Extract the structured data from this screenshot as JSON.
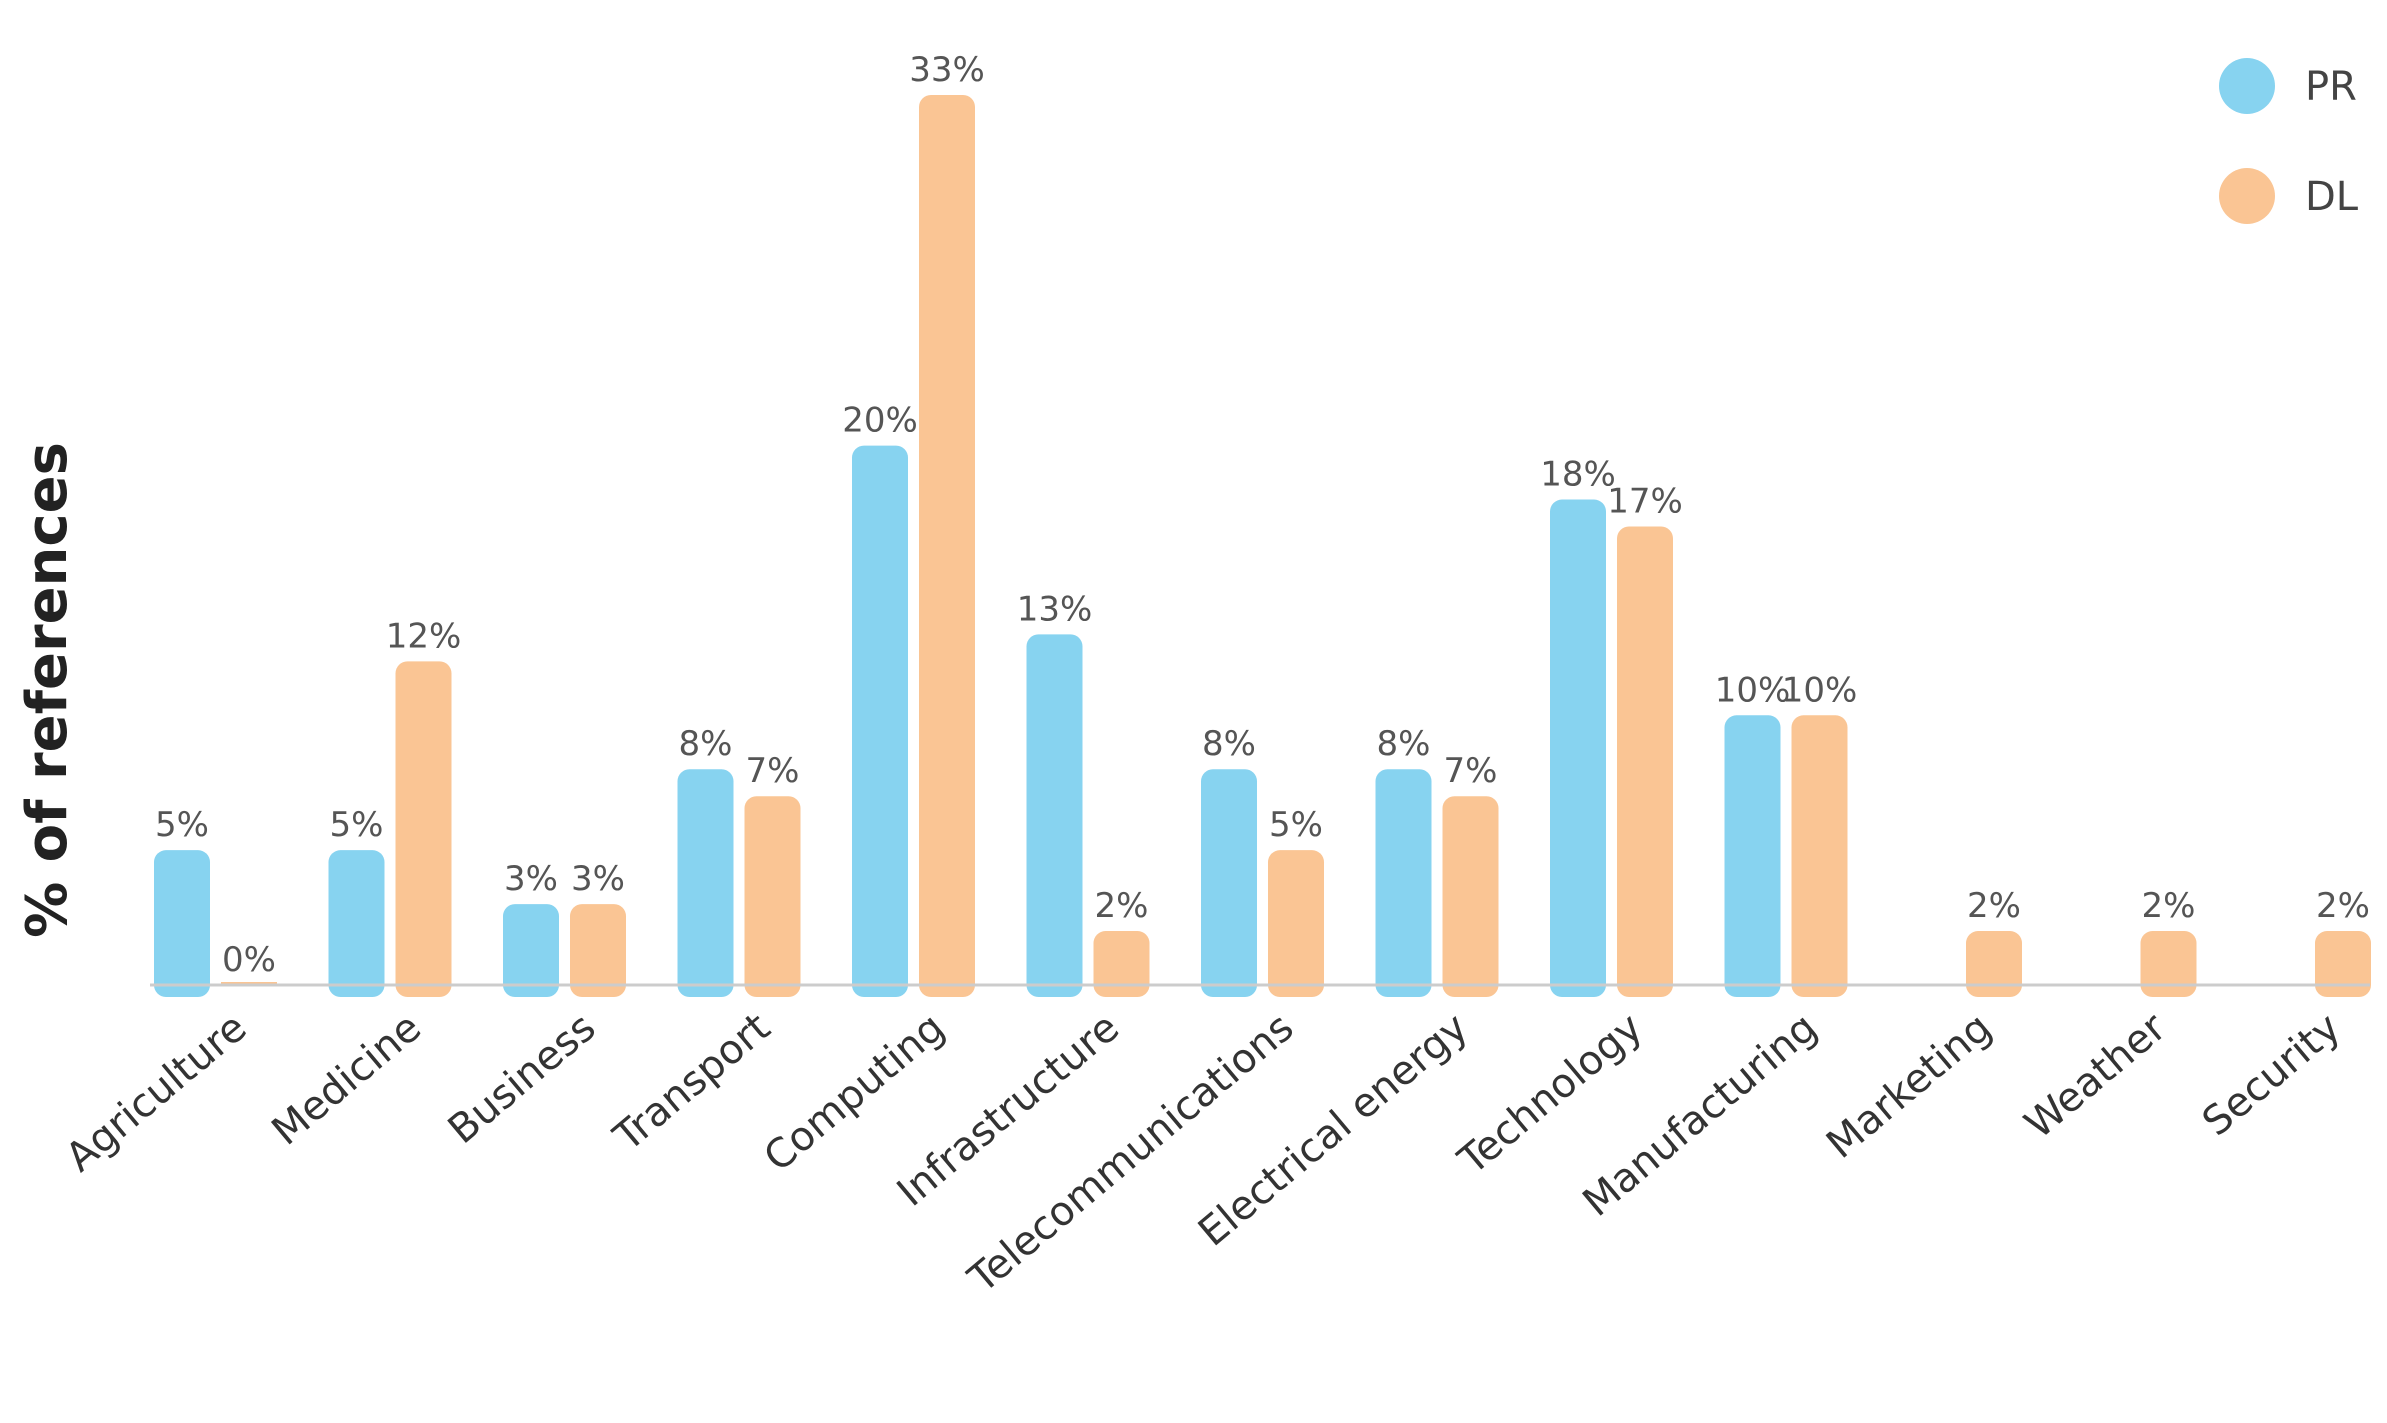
{
  "chart_data": {
    "type": "bar",
    "ylabel": "% of references",
    "xlabel": "",
    "title": "",
    "categories": [
      "Agriculture",
      "Medicine",
      "Business",
      "Transport",
      "Computing",
      "Infrastructure",
      "Telecommunications",
      "Electrical energy",
      "Technology",
      "Manufacturing",
      "Marketing",
      "Weather",
      "Security"
    ],
    "series": [
      {
        "name": "PR",
        "color": "#87d3f0",
        "values": [
          5,
          5,
          3,
          8,
          20,
          13,
          8,
          8,
          18,
          10,
          null,
          null,
          null
        ],
        "labels": [
          "5%",
          "5%",
          "3%",
          "8%",
          "20%",
          "13%",
          "8%",
          "8%",
          "18%",
          "10%",
          "",
          "",
          ""
        ]
      },
      {
        "name": "DL",
        "color": "#fac594",
        "values": [
          0,
          12,
          3,
          7,
          33,
          2,
          5,
          7,
          17,
          10,
          2,
          2,
          2
        ],
        "labels": [
          "0%",
          "12%",
          "3%",
          "7%",
          "33%",
          "2%",
          "5%",
          "7%",
          "17%",
          "10%",
          "2%",
          "2%",
          "2%"
        ]
      }
    ],
    "ylim": [
      0,
      33
    ],
    "grid": false,
    "legend_position": "top-right",
    "axis_color": "#cccccc"
  }
}
